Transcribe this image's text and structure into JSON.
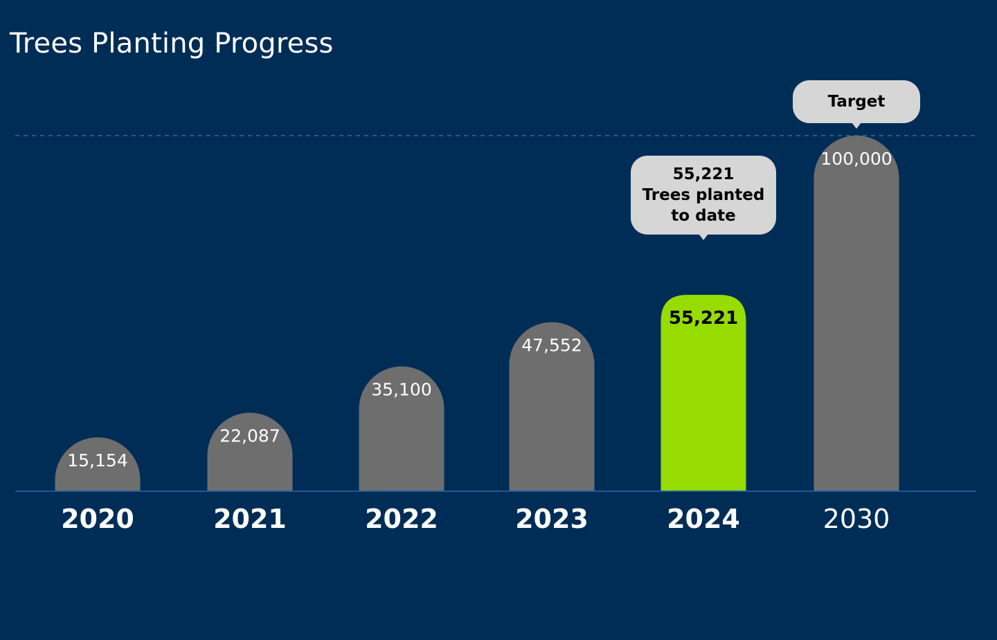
{
  "title": "Trees Planting Progress",
  "chart_data": {
    "type": "bar",
    "categories": [
      "2020",
      "2021",
      "2022",
      "2023",
      "2024",
      "2030"
    ],
    "values": [
      15154,
      22087,
      35100,
      47552,
      55221,
      100000
    ],
    "value_labels": [
      "15,154",
      "22,087",
      "35,100",
      "47,552",
      "55,221",
      "100,000"
    ],
    "highlight_index": 4,
    "ylim": [
      0,
      100000
    ],
    "reference_line": 100000,
    "annotations": [
      {
        "category": "2024",
        "lines": [
          "55,221",
          "Trees planted",
          "to date"
        ]
      },
      {
        "category": "2030",
        "lines": [
          "Target"
        ]
      }
    ],
    "colors": {
      "background": "#002d56",
      "bar": "#6e6e6e",
      "highlight": "#96dc00",
      "callout": "#d6d6d6",
      "axis": "#1d5a9a",
      "reference_line": "#2f6da8"
    }
  }
}
